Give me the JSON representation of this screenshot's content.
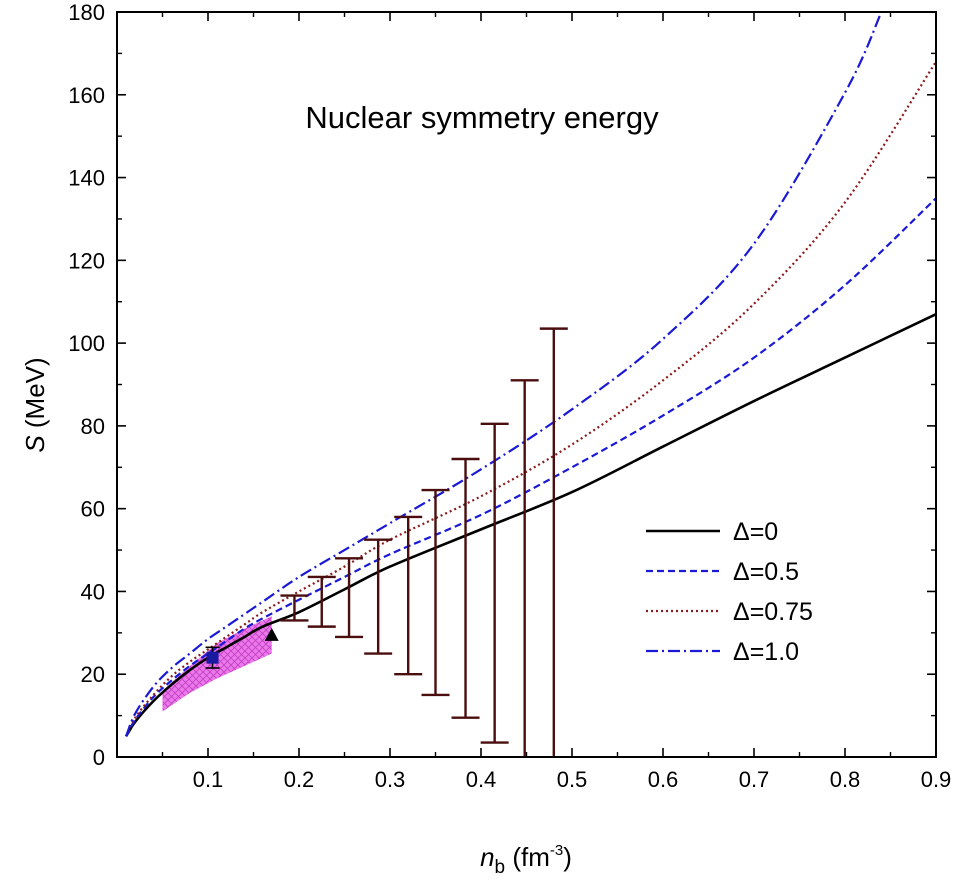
{
  "chart_data": {
    "type": "line",
    "title": "Nuclear symmetry energy",
    "xlabel": {
      "italic": "n",
      "sub": "b",
      "unit_open": " (fm",
      "sup": "-3",
      "unit_close": ")"
    },
    "ylabel": {
      "italic": "S",
      "unit": " (MeV)"
    },
    "xlim": [
      0.0,
      0.9
    ],
    "ylim": [
      0,
      180
    ],
    "xticks": [
      0.1,
      0.2,
      0.3,
      0.4,
      0.5,
      0.6,
      0.7,
      0.8,
      0.9
    ],
    "xtick_labels": [
      "0.1",
      "0.2",
      "0.3",
      "0.4",
      "0.5",
      "0.6",
      "0.7",
      "0.8",
      "0.9"
    ],
    "yticks": [
      0,
      20,
      40,
      60,
      80,
      100,
      120,
      140,
      160,
      180
    ],
    "ytick_labels": [
      "0",
      "20",
      "40",
      "60",
      "80",
      "100",
      "120",
      "140",
      "160",
      "180"
    ],
    "grid": false,
    "legend_position": "right",
    "series": [
      {
        "name": "Δ=0",
        "color": "#000000",
        "dash": "solid",
        "width": 2.6,
        "x": [
          0.01,
          0.02,
          0.04,
          0.06,
          0.08,
          0.1,
          0.12,
          0.14,
          0.16,
          0.2,
          0.25,
          0.3,
          0.4,
          0.5,
          0.6,
          0.7,
          0.8,
          0.9
        ],
        "y": [
          5,
          8.5,
          13.5,
          17.5,
          21,
          24,
          26.5,
          29,
          31.5,
          35,
          40.5,
          46,
          55,
          64,
          75,
          86,
          96.5,
          107
        ]
      },
      {
        "name": "Δ=0.5",
        "color": "#1a1ad6",
        "dash": "7,4",
        "width": 2.2,
        "x": [
          0.01,
          0.02,
          0.04,
          0.06,
          0.08,
          0.1,
          0.12,
          0.14,
          0.16,
          0.2,
          0.25,
          0.3,
          0.4,
          0.5,
          0.6,
          0.7,
          0.8,
          0.9
        ],
        "y": [
          5,
          9,
          14.5,
          18.5,
          22,
          25,
          28,
          31,
          33.5,
          38,
          43.5,
          49,
          58.5,
          70,
          82.5,
          96.5,
          114,
          135
        ]
      },
      {
        "name": "Δ=0.75",
        "color": "#8b1a1a",
        "dash": "2,3",
        "width": 2.2,
        "x": [
          0.01,
          0.02,
          0.04,
          0.06,
          0.08,
          0.1,
          0.12,
          0.14,
          0.16,
          0.2,
          0.25,
          0.3,
          0.4,
          0.5,
          0.6,
          0.7,
          0.8,
          0.9
        ],
        "y": [
          5,
          9.5,
          15,
          19.5,
          23,
          26,
          29,
          32,
          35,
          40,
          46,
          52.5,
          63,
          75.5,
          91,
          109.5,
          134,
          168
        ]
      },
      {
        "name": "Δ=1.0",
        "color": "#1a1ad6",
        "dash": "12,4,2,4",
        "width": 2.2,
        "x": [
          0.01,
          0.02,
          0.04,
          0.06,
          0.08,
          0.1,
          0.12,
          0.14,
          0.16,
          0.2,
          0.25,
          0.3,
          0.4,
          0.5,
          0.6,
          0.7,
          0.8,
          0.84
        ],
        "y": [
          5,
          10.5,
          17,
          21.5,
          25,
          28.5,
          31.5,
          34.5,
          37.5,
          43.5,
          50,
          56.5,
          69.5,
          84,
          101,
          124,
          160.5,
          180
        ]
      }
    ],
    "error_bars": {
      "color": "#4a0e0e",
      "x": [
        0.195,
        0.225,
        0.255,
        0.287,
        0.32,
        0.35,
        0.383,
        0.415,
        0.448,
        0.48
      ],
      "ymin": [
        33,
        31.5,
        29,
        25,
        20,
        15,
        9.5,
        3.5,
        0,
        0
      ],
      "ymax": [
        39,
        43.5,
        48,
        52.5,
        58,
        64.5,
        72,
        80.5,
        91,
        103.5
      ]
    },
    "band": {
      "color": "#e060e0",
      "x": [
        0.05,
        0.08,
        0.11,
        0.14,
        0.17
      ],
      "ymin": [
        11,
        15.5,
        19,
        22,
        25
      ],
      "ymax": [
        16,
        22,
        27.5,
        31,
        34
      ]
    },
    "markers": [
      {
        "shape": "square",
        "color": "#1a1aa0",
        "x": 0.105,
        "y": 24,
        "err": 2.5
      },
      {
        "shape": "triangle",
        "color": "#000000",
        "x": 0.17,
        "y": 29.5
      }
    ]
  }
}
